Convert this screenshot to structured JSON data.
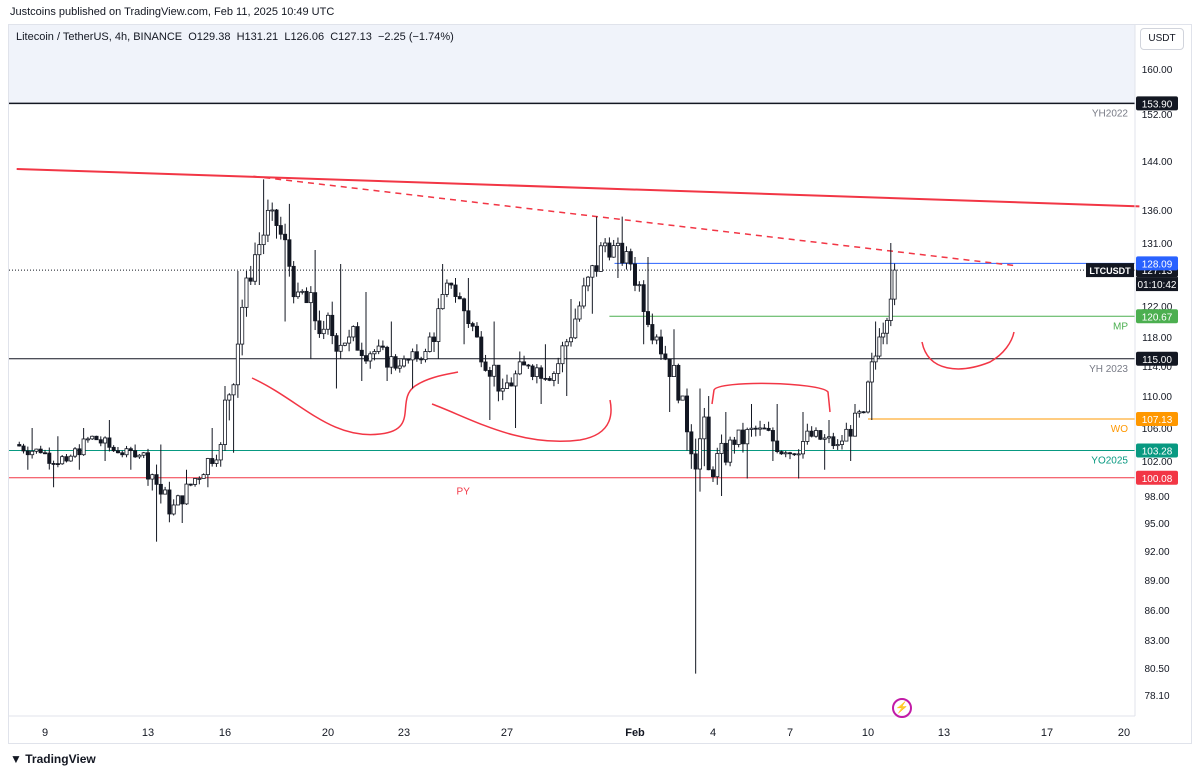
{
  "header": {
    "published": "Justcoins published on TradingView.com, Feb 11, 2025 10:49 UTC"
  },
  "legend": {
    "symbol_line": "Litecoin / TetherUS, 4h, BINANCE",
    "open_label": "O",
    "open": "129.38",
    "high_label": "H",
    "high": "131.21",
    "low_label": "L",
    "low": "126.06",
    "close_label": "C",
    "close": "127.13",
    "change": "−2.25 (−1.74%)"
  },
  "currency_button": "USDT",
  "footer": {
    "brand": "TradingView"
  },
  "colors": {
    "up": "#131722",
    "down": "#131722",
    "red": "#f23645",
    "blue": "#2962ff",
    "green": "#089981",
    "mp_green": "#4caf50",
    "orange": "#ff9800",
    "dark": "#131722"
  },
  "chart_data": {
    "type": "candlestick",
    "title": "",
    "symbol": "LTCUSDT",
    "ylim": [
      76,
      166
    ],
    "price_ticks": [
      "160.00",
      "152.00",
      "144.00",
      "136.00",
      "131.00",
      "122.00",
      "118.00",
      "114.00",
      "110.00",
      "106.00",
      "102.00",
      "98.00",
      "95.00",
      "92.00",
      "89.00",
      "86.00",
      "83.00",
      "80.50",
      "78.10"
    ],
    "price_tick_values": [
      160,
      152,
      144,
      136,
      131,
      122,
      118,
      114,
      110,
      106,
      102,
      98,
      95,
      92,
      89,
      86,
      83,
      80.5,
      78.1
    ],
    "x_ticks": [
      "9",
      "13",
      "16",
      "20",
      "23",
      "27",
      "Feb",
      "4",
      "7",
      "10",
      "13",
      "17",
      "20"
    ],
    "x_tick_days": [
      9,
      13,
      16,
      20,
      23,
      27,
      32,
      35,
      38,
      41,
      44,
      48,
      51
    ],
    "x_range_days": [
      7.9,
      51.6
    ],
    "levels": [
      {
        "name": "YH2022",
        "price": 153.9,
        "label": "153.90",
        "tag": "YH2022",
        "color": "#131722"
      },
      {
        "name": "LTCUSDT",
        "price": 127.13,
        "label": "127.13",
        "sublabel": "01:10:42",
        "tag": "LTCUSDT",
        "color": "#131722",
        "dotted": true
      },
      {
        "name": "blue",
        "price": 128.09,
        "label": "128.09",
        "tag": "",
        "color": "#2962ff"
      },
      {
        "name": "MP",
        "price": 120.67,
        "label": "120.67",
        "tag": "MP",
        "color": "#4caf50"
      },
      {
        "name": "YH 2023",
        "price": 115.0,
        "label": "115.00",
        "tag": "YH 2023",
        "color": "#131722"
      },
      {
        "name": "WO",
        "price": 107.13,
        "label": "107.13",
        "tag": "WO",
        "color": "#ff9800"
      },
      {
        "name": "YO2025",
        "price": 103.28,
        "label": "103.28",
        "tag": "YO2025",
        "color": "#089981"
      },
      {
        "name": "PY",
        "price": 100.08,
        "label": "100.08",
        "tag": "PY",
        "color": "#f23645"
      }
    ],
    "trendlines": [
      {
        "style": "solid",
        "from": [
          7.9,
          142.7
        ],
        "to": [
          51.6,
          136.6
        ]
      },
      {
        "style": "dashed",
        "from": [
          17.1,
          141.5
        ],
        "to": [
          46.7,
          127.8
        ]
      }
    ],
    "candles_daily": [
      {
        "day": 8,
        "o": 104,
        "h": 106,
        "l": 101,
        "c": 103
      },
      {
        "day": 9,
        "o": 103,
        "h": 105,
        "l": 99,
        "c": 102
      },
      {
        "day": 10,
        "o": 102,
        "h": 106,
        "l": 101,
        "c": 105
      },
      {
        "day": 11,
        "o": 105,
        "h": 107,
        "l": 102,
        "c": 103
      },
      {
        "day": 12,
        "o": 103,
        "h": 104,
        "l": 101,
        "c": 103
      },
      {
        "day": 13,
        "o": 103,
        "h": 104,
        "l": 93,
        "c": 96
      },
      {
        "day": 14,
        "o": 96,
        "h": 101,
        "l": 95,
        "c": 100
      },
      {
        "day": 15,
        "o": 100,
        "h": 106,
        "l": 99,
        "c": 104
      },
      {
        "day": 16,
        "o": 104,
        "h": 127,
        "l": 103,
        "c": 126
      },
      {
        "day": 17,
        "o": 126,
        "h": 141,
        "l": 125,
        "c": 136
      },
      {
        "day": 18,
        "o": 136,
        "h": 137,
        "l": 120,
        "c": 124
      },
      {
        "day": 19,
        "o": 124,
        "h": 130,
        "l": 115,
        "c": 119
      },
      {
        "day": 20,
        "o": 119,
        "h": 128,
        "l": 111,
        "c": 118
      },
      {
        "day": 21,
        "o": 118,
        "h": 124,
        "l": 112,
        "c": 116
      },
      {
        "day": 22,
        "o": 116,
        "h": 120,
        "l": 112,
        "c": 114
      },
      {
        "day": 23,
        "o": 114,
        "h": 117,
        "l": 111,
        "c": 116
      },
      {
        "day": 24,
        "o": 116,
        "h": 128,
        "l": 115,
        "c": 125
      },
      {
        "day": 25,
        "o": 125,
        "h": 126,
        "l": 117,
        "c": 118
      },
      {
        "day": 26,
        "o": 118,
        "h": 120,
        "l": 107,
        "c": 111
      },
      {
        "day": 27,
        "o": 111,
        "h": 116,
        "l": 106,
        "c": 114
      },
      {
        "day": 28,
        "o": 114,
        "h": 117,
        "l": 109,
        "c": 113
      },
      {
        "day": 29,
        "o": 113,
        "h": 123,
        "l": 110,
        "c": 122
      },
      {
        "day": 30,
        "o": 122,
        "h": 135,
        "l": 121,
        "c": 131
      },
      {
        "day": 31,
        "o": 131,
        "h": 135,
        "l": 126,
        "c": 128
      },
      {
        "day": 32,
        "o": 128,
        "h": 129,
        "l": 117,
        "c": 118
      },
      {
        "day": 33,
        "o": 118,
        "h": 119,
        "l": 108,
        "c": 110
      },
      {
        "day": 34,
        "o": 110,
        "h": 111,
        "l": 80,
        "c": 101
      },
      {
        "day": 35,
        "o": 101,
        "h": 108,
        "l": 98,
        "c": 104
      },
      {
        "day": 36,
        "o": 104,
        "h": 109,
        "l": 100,
        "c": 106
      },
      {
        "day": 37,
        "o": 106,
        "h": 109,
        "l": 102,
        "c": 103
      },
      {
        "day": 38,
        "o": 103,
        "h": 108,
        "l": 100,
        "c": 105
      },
      {
        "day": 39,
        "o": 105,
        "h": 107,
        "l": 101,
        "c": 104
      },
      {
        "day": 40,
        "o": 104,
        "h": 109,
        "l": 102,
        "c": 108
      },
      {
        "day": 41,
        "o": 108,
        "h": 120,
        "l": 107,
        "c": 118
      },
      {
        "day": 41.6,
        "o": 118,
        "h": 131,
        "l": 117,
        "c": 127.13
      }
    ],
    "annotations": [
      {
        "text": "PY",
        "x_day": 25.3,
        "price": 99.3,
        "color": "#f23645"
      }
    ],
    "drawings": "freehand red curves (bases) under price"
  }
}
